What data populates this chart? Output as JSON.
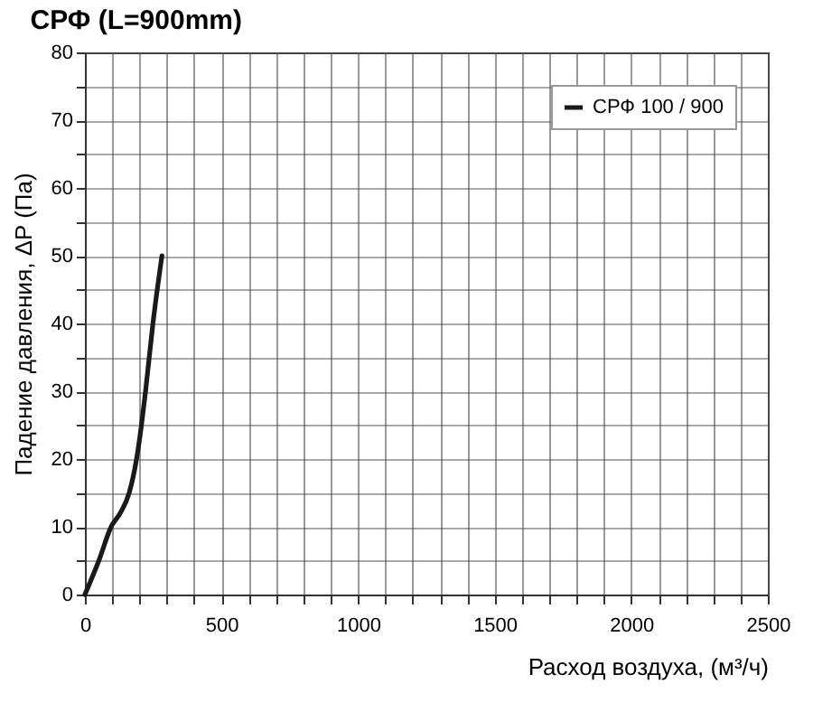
{
  "chart_data": {
    "type": "line",
    "title": "СРФ (L=900mm)",
    "xlabel": "Расход воздуха, (м³/ч)",
    "ylabel": "Падение давления, ΔP (Па)",
    "x": [
      0,
      51,
      96,
      129,
      162,
      189,
      207,
      222,
      249,
      282
    ],
    "series": [
      {
        "name": "СРФ 100 / 900",
        "color": "#1a1a1a",
        "values": [
          0,
          5,
          10,
          12,
          15,
          20,
          25,
          30,
          40,
          50
        ]
      }
    ],
    "xlim": [
      0,
      2500
    ],
    "xticks": [
      0,
      {
        "value": 100,
        "label": null
      },
      {
        "value": 200,
        "label": null
      },
      {
        "value": 300,
        "label": null
      },
      {
        "value": 400,
        "label": null
      },
      500,
      {
        "value": 600,
        "label": null
      },
      {
        "value": 700,
        "label": null
      },
      {
        "value": 800,
        "label": null
      },
      {
        "value": 900,
        "label": null
      },
      1000,
      {
        "value": 1100,
        "label": null
      },
      {
        "value": 1200,
        "label": null
      },
      {
        "value": 1300,
        "label": null
      },
      {
        "value": 1400,
        "label": null
      },
      1500,
      {
        "value": 1600,
        "label": null
      },
      {
        "value": 1700,
        "label": null
      },
      {
        "value": 1800,
        "label": null
      },
      {
        "value": 1900,
        "label": null
      },
      2000,
      {
        "value": 2100,
        "label": null
      },
      {
        "value": 2200,
        "label": null
      },
      {
        "value": 2300,
        "label": null
      },
      {
        "value": 2400,
        "label": null
      },
      2500
    ],
    "ylim": [
      0,
      80
    ],
    "yticks": [
      0,
      {
        "value": 5,
        "label": null
      },
      10,
      {
        "value": 15,
        "label": null
      },
      20,
      {
        "value": 25,
        "label": null
      },
      30,
      {
        "value": 35,
        "label": null
      },
      40,
      {
        "value": 45,
        "label": null
      },
      50,
      {
        "value": 55,
        "label": null
      },
      60,
      {
        "value": 65,
        "label": null
      },
      70,
      {
        "value": 75,
        "label": null
      },
      80
    ],
    "grid": true,
    "legend": "top right",
    "marker": "none",
    "line_style": "solid"
  }
}
